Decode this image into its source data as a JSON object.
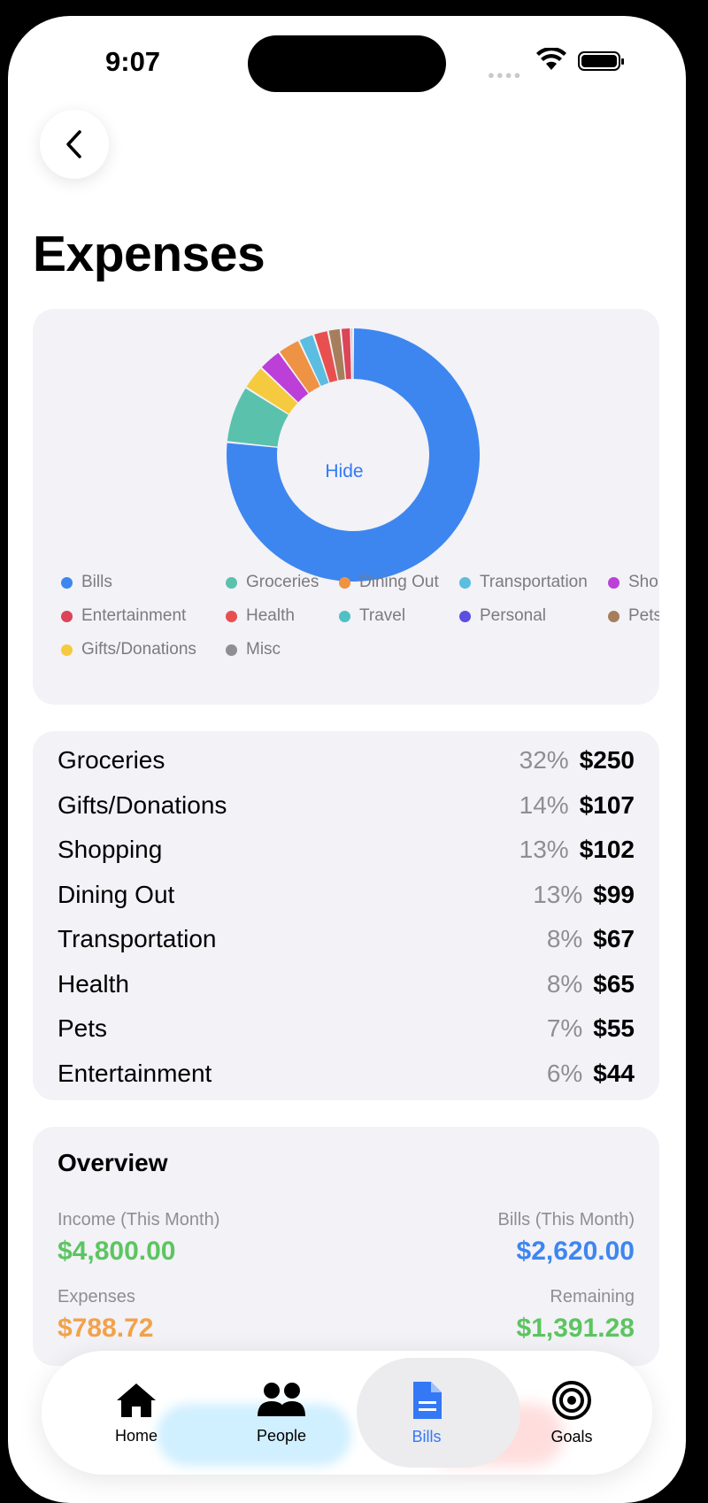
{
  "status_bar": {
    "time": "9:07"
  },
  "page": {
    "title": "Expenses"
  },
  "chart_data": {
    "type": "pie",
    "center_label": "Hide",
    "slices": [
      {
        "name": "Bills",
        "value": 2620.0,
        "color": "#3e86ef"
      },
      {
        "name": "Groceries",
        "value": 250,
        "color": "#5ac1ad"
      },
      {
        "name": "Gifts/Donations",
        "value": 107,
        "color": "#f6ca3e"
      },
      {
        "name": "Shopping",
        "value": 102,
        "color": "#bc3fd8"
      },
      {
        "name": "Dining Out",
        "value": 99,
        "color": "#ee9244"
      },
      {
        "name": "Transportation",
        "value": 67,
        "color": "#5bbde0"
      },
      {
        "name": "Health",
        "value": 65,
        "color": "#e85050"
      },
      {
        "name": "Pets",
        "value": 55,
        "color": "#a77e5c"
      },
      {
        "name": "Entertainment",
        "value": 44,
        "color": "#dc4458"
      },
      {
        "name": "Misc",
        "value": 10,
        "color": "#8e8e93"
      }
    ],
    "legend": [
      {
        "label": "Bills",
        "color": "#3e86ef"
      },
      {
        "label": "Groceries",
        "color": "#5ac1ad"
      },
      {
        "label": "Dining Out",
        "color": "#ee9244"
      },
      {
        "label": "Transportation",
        "color": "#5bbde0"
      },
      {
        "label": "Sho",
        "color": "#bc3fd8"
      },
      {
        "label": "Entertainment",
        "color": "#dc4458"
      },
      {
        "label": "Health",
        "color": "#e85050"
      },
      {
        "label": "Travel",
        "color": "#4ec0c6"
      },
      {
        "label": "Personal",
        "color": "#5b4fe0"
      },
      {
        "label": "Pets",
        "color": "#a77e5c"
      },
      {
        "label": "Gifts/Donations",
        "color": "#f6ca3e"
      },
      {
        "label": "Misc",
        "color": "#8e8e93"
      }
    ]
  },
  "breakdown": [
    {
      "name": "Groceries",
      "pct": "32%",
      "amount": "$250"
    },
    {
      "name": "Gifts/Donations",
      "pct": "14%",
      "amount": "$107"
    },
    {
      "name": "Shopping",
      "pct": "13%",
      "amount": "$102"
    },
    {
      "name": "Dining Out",
      "pct": "13%",
      "amount": "$99"
    },
    {
      "name": "Transportation",
      "pct": "8%",
      "amount": "$67"
    },
    {
      "name": "Health",
      "pct": "8%",
      "amount": "$65"
    },
    {
      "name": "Pets",
      "pct": "7%",
      "amount": "$55"
    },
    {
      "name": "Entertainment",
      "pct": "6%",
      "amount": "$44"
    }
  ],
  "overview": {
    "title": "Overview",
    "income_label": "Income (This Month)",
    "income_value": "$4,800.00",
    "bills_label": "Bills (This Month)",
    "bills_value": "$2,620.00",
    "expenses_label": "Expenses",
    "expenses_value": "$788.72",
    "remaining_label": "Remaining",
    "remaining_value": "$1,391.28",
    "colors": {
      "income": "#5cc560",
      "bills": "#3e86ef",
      "expenses": "#f2a24a",
      "remaining": "#5cc560"
    }
  },
  "tabbar": {
    "tabs": [
      {
        "label": "Home",
        "icon": "house-icon"
      },
      {
        "label": "People",
        "icon": "people-icon"
      },
      {
        "label": "Bills",
        "icon": "document-icon",
        "active": true
      },
      {
        "label": "Goals",
        "icon": "target-icon"
      }
    ]
  },
  "colors": {
    "accent": "#3478f6",
    "card_bg": "#f2f2f7"
  }
}
